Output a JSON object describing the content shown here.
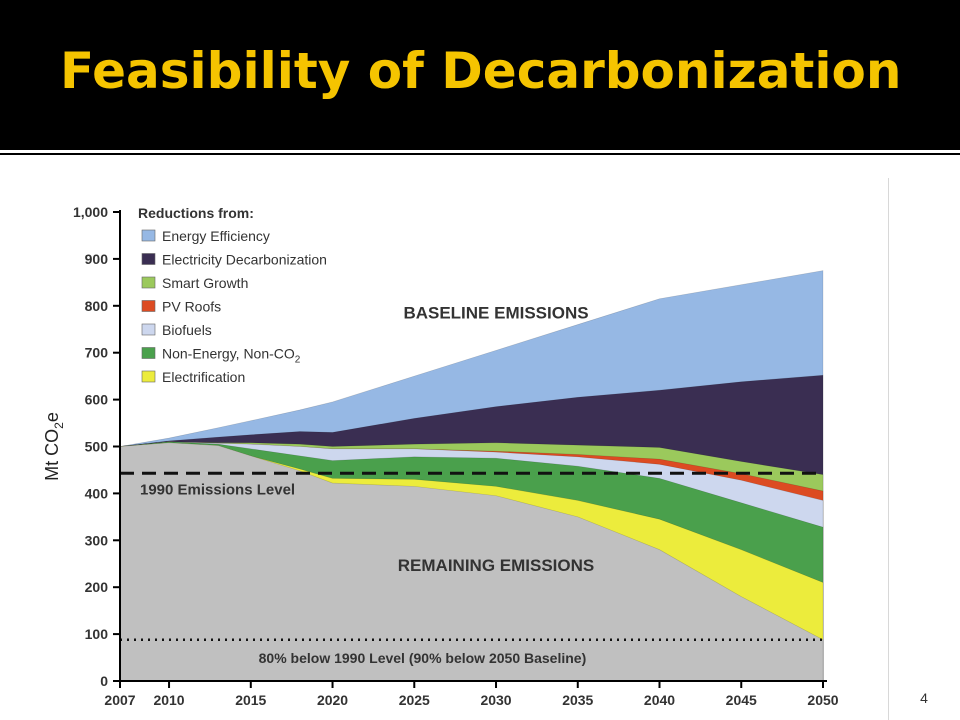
{
  "slide": {
    "title": "Feasibility of Decarbonization",
    "page_number": "4"
  },
  "colors": {
    "title": "#f5c400",
    "remaining": "#c0c0c0",
    "electrification": "#ecec3c",
    "non_energy": "#4aa04c",
    "biofuels": "#cdd7ee",
    "pv_roofs": "#dc4b22",
    "smart_growth": "#9bc95c",
    "electricity_decarbonization": "#3a2e52",
    "energy_efficiency": "#96b8e4"
  },
  "chart_data": {
    "type": "area",
    "ylabel": "Mt CO2e",
    "ylabel_main": "Mt CO",
    "ylabel_sub": "2",
    "ylabel_tail": "e",
    "ylim": [
      0,
      1000
    ],
    "yticks": [
      0,
      100,
      200,
      300,
      400,
      500,
      600,
      700,
      800,
      900,
      1000
    ],
    "ytick_labels": [
      "0",
      "100",
      "200",
      "300",
      "400",
      "500",
      "600",
      "700",
      "800",
      "900",
      "1,000"
    ],
    "xticks": [
      2007,
      2010,
      2015,
      2020,
      2025,
      2030,
      2035,
      2040,
      2045,
      2050
    ],
    "xtick_labels": [
      "2007",
      "2010",
      "2015",
      "2020",
      "2025",
      "2030",
      "2035",
      "2040",
      "2045",
      "2050"
    ],
    "legend_title": "Reductions from:",
    "legend_position": "top-left",
    "legend": [
      {
        "label": "Energy Efficiency",
        "color_key": "energy_efficiency"
      },
      {
        "label": "Electricity Decarbonization",
        "color_key": "electricity_decarbonization"
      },
      {
        "label": "Smart Growth",
        "color_key": "smart_growth"
      },
      {
        "label": "PV Roofs",
        "color_key": "pv_roofs"
      },
      {
        "label": "Biofuels",
        "color_key": "biofuels"
      },
      {
        "label": "Non-Energy, Non-CO2",
        "label_main": "Non-Energy, Non-CO",
        "label_sub": "2",
        "color_key": "non_energy"
      },
      {
        "label": "Electrification",
        "color_key": "electrification"
      }
    ],
    "x": [
      2007,
      2010,
      2013,
      2015,
      2018,
      2020,
      2025,
      2030,
      2035,
      2040,
      2045,
      2050
    ],
    "stacked_boundaries": [
      {
        "name": "Remaining Emissions",
        "color_key": "remaining",
        "top": [
          500,
          508,
          502,
          480,
          448,
          422,
          415,
          395,
          350,
          280,
          180,
          88
        ]
      },
      {
        "name": "Electrification",
        "color_key": "electrification",
        "top": [
          500,
          508,
          502,
          480,
          452,
          432,
          430,
          415,
          385,
          345,
          280,
          210
        ]
      },
      {
        "name": "Non-Energy, Non-CO2",
        "color_key": "non_energy",
        "top": [
          500,
          510,
          505,
          495,
          480,
          470,
          478,
          475,
          458,
          432,
          380,
          328
        ]
      },
      {
        "name": "Biofuels",
        "color_key": "biofuels",
        "top": [
          500,
          510,
          507,
          505,
          500,
          495,
          495,
          488,
          478,
          462,
          428,
          385
        ]
      },
      {
        "name": "PV Roofs",
        "color_key": "pv_roofs",
        "top": [
          500,
          510,
          507,
          505,
          500,
          495,
          495,
          490,
          483,
          473,
          442,
          405
        ]
      },
      {
        "name": "Smart Growth",
        "color_key": "smart_growth",
        "top": [
          500,
          510,
          508,
          508,
          505,
          500,
          505,
          508,
          503,
          498,
          468,
          440
        ]
      },
      {
        "name": "Electricity Decarbonization",
        "color_key": "electricity_decarbonization",
        "top": [
          500,
          512,
          520,
          525,
          532,
          530,
          560,
          585,
          605,
          620,
          638,
          652
        ]
      },
      {
        "name": "Energy Efficiency",
        "color_key": "energy_efficiency",
        "top": [
          500,
          518,
          540,
          555,
          578,
          595,
          650,
          705,
          760,
          815,
          845,
          875
        ]
      }
    ],
    "reference_lines": [
      {
        "name": "1990 Emissions Level",
        "value": 443,
        "style": "dashed"
      },
      {
        "name": "80% below 1990 Level",
        "value": 88,
        "style": "dotted"
      }
    ],
    "annotations": [
      {
        "text": "BASELINE EMISSIONS",
        "x": 2030,
        "y": 773
      },
      {
        "text": "REMAINING EMISSIONS",
        "x": 2030,
        "y": 235
      },
      {
        "text": "1990 Emissions Level",
        "x": 2015,
        "y": 398
      },
      {
        "text": "80% below 1990 Level (90% below 2050 Baseline)",
        "x": 2025.5,
        "y": 38
      }
    ]
  }
}
